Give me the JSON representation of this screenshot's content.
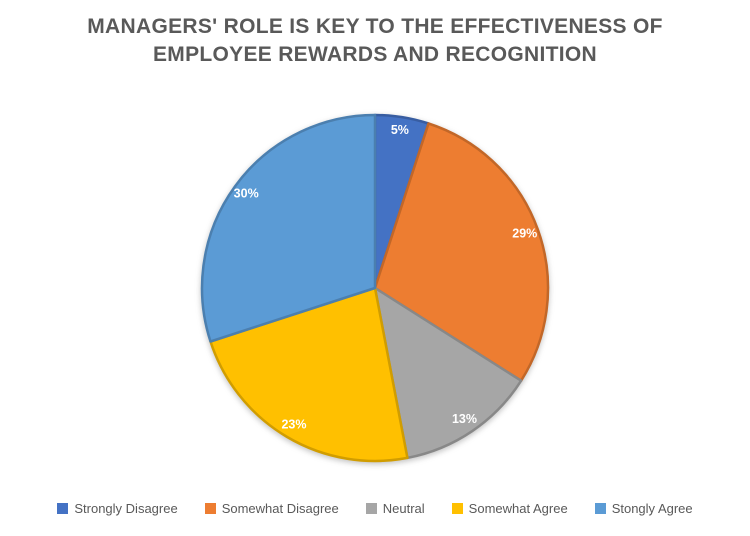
{
  "chart_data": {
    "type": "pie",
    "title": "MANAGERS' ROLE IS KEY TO THE EFFECTIVENESS OF EMPLOYEE REWARDS AND RECOGNITION",
    "title_lines": [
      "MANAGERS' ROLE IS KEY TO THE EFFECTIVENESS OF",
      "EMPLOYEE REWARDS AND RECOGNITION"
    ],
    "categories": [
      "Strongly Disagree",
      "Somewhat Disagree",
      "Neutral",
      "Somewhat Agree",
      "Stongly Agree"
    ],
    "values": [
      5,
      29,
      13,
      23,
      30
    ],
    "data_labels": [
      "5%",
      "29%",
      "13%",
      "23%",
      "30%"
    ],
    "colors": [
      "#4472C4",
      "#ED7D31",
      "#A6A6A6",
      "#FFC000",
      "#5B9BD5"
    ],
    "label_color": "#FFFFFF",
    "title_color": "#595959",
    "legend_text_color": "#595959",
    "start_angle_deg": 0,
    "direction": "clockwise",
    "legend_position": "bottom",
    "label_radius_frac": 0.92
  }
}
